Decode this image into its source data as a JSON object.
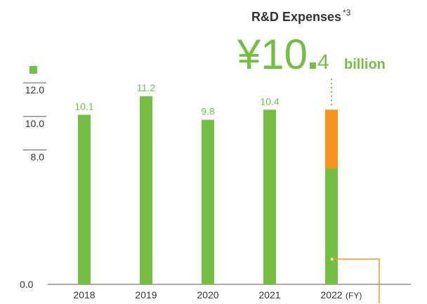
{
  "chart_data": {
    "type": "bar",
    "title": "R&D Expenses",
    "title_note": "*3",
    "headline_main": "¥10",
    "headline_decimal": "4",
    "headline_unit": "billion",
    "categories": [
      "2018",
      "2019",
      "2020",
      "2021",
      "2022"
    ],
    "x_unit": "(FY)",
    "series": [
      {
        "color": "#72bf44",
        "values": [
          10.1,
          11.2,
          9.8,
          10.4,
          6.9
        ],
        "value_labels": [
          "10.1",
          "11.2",
          "9.8",
          "10.4",
          null
        ]
      },
      {
        "color": "#f7941d",
        "values": [
          null,
          null,
          null,
          null,
          3.5
        ]
      }
    ],
    "ylim": [
      0,
      12
    ],
    "yticks": [
      {
        "value": 0,
        "label": "0.0"
      },
      {
        "value": 8,
        "label": "8.0"
      },
      {
        "value": 10,
        "label": "10.0"
      },
      {
        "value": 12,
        "label": "12.0"
      }
    ]
  }
}
